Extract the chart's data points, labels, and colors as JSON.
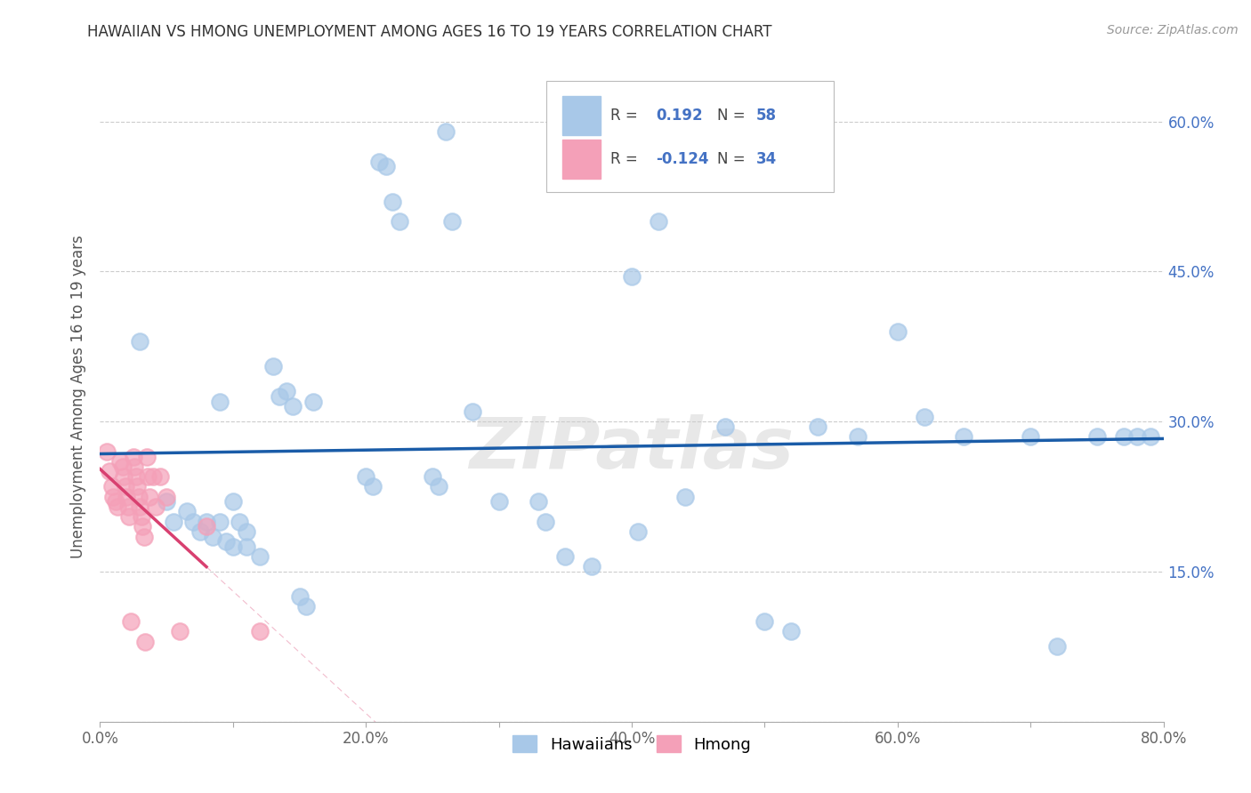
{
  "title": "HAWAIIAN VS HMONG UNEMPLOYMENT AMONG AGES 16 TO 19 YEARS CORRELATION CHART",
  "source": "Source: ZipAtlas.com",
  "ylabel": "Unemployment Among Ages 16 to 19 years",
  "xlim": [
    0.0,
    0.8
  ],
  "ylim": [
    0.0,
    0.65
  ],
  "xticks": [
    0.0,
    0.1,
    0.2,
    0.3,
    0.4,
    0.5,
    0.6,
    0.7,
    0.8
  ],
  "xticklabels": [
    "0.0%",
    "",
    "20.0%",
    "",
    "40.0%",
    "",
    "60.0%",
    "",
    "80.0%"
  ],
  "yticks": [
    0.0,
    0.15,
    0.3,
    0.45,
    0.6
  ],
  "yticklabels_right": [
    "",
    "15.0%",
    "30.0%",
    "45.0%",
    "60.0%"
  ],
  "hawaiian_R": "0.192",
  "hawaiian_N": "58",
  "hmong_R": "-0.124",
  "hmong_N": "34",
  "hawaiian_color": "#a8c8e8",
  "hmong_color": "#f4a0b8",
  "hawaiian_line_color": "#1a5ca8",
  "hmong_line_color": "#d84070",
  "watermark": "ZIPatlas",
  "hawaiian_x": [
    0.03,
    0.05,
    0.055,
    0.065,
    0.07,
    0.075,
    0.08,
    0.085,
    0.09,
    0.09,
    0.095,
    0.1,
    0.1,
    0.105,
    0.11,
    0.11,
    0.12,
    0.13,
    0.135,
    0.14,
    0.145,
    0.15,
    0.155,
    0.16,
    0.2,
    0.205,
    0.21,
    0.215,
    0.22,
    0.225,
    0.25,
    0.255,
    0.26,
    0.265,
    0.28,
    0.3,
    0.33,
    0.335,
    0.35,
    0.37,
    0.4,
    0.405,
    0.42,
    0.44,
    0.47,
    0.5,
    0.52,
    0.54,
    0.57,
    0.6,
    0.62,
    0.65,
    0.7,
    0.72,
    0.75,
    0.77,
    0.78,
    0.79
  ],
  "hawaiian_y": [
    0.38,
    0.22,
    0.2,
    0.21,
    0.2,
    0.19,
    0.2,
    0.185,
    0.32,
    0.2,
    0.18,
    0.175,
    0.22,
    0.2,
    0.19,
    0.175,
    0.165,
    0.355,
    0.325,
    0.33,
    0.315,
    0.125,
    0.115,
    0.32,
    0.245,
    0.235,
    0.56,
    0.555,
    0.52,
    0.5,
    0.245,
    0.235,
    0.59,
    0.5,
    0.31,
    0.22,
    0.22,
    0.2,
    0.165,
    0.155,
    0.445,
    0.19,
    0.5,
    0.225,
    0.295,
    0.1,
    0.09,
    0.295,
    0.285,
    0.39,
    0.305,
    0.285,
    0.285,
    0.075,
    0.285,
    0.285,
    0.285,
    0.285
  ],
  "hmong_x": [
    0.005,
    0.007,
    0.009,
    0.01,
    0.012,
    0.013,
    0.015,
    0.017,
    0.018,
    0.019,
    0.02,
    0.021,
    0.022,
    0.023,
    0.025,
    0.026,
    0.027,
    0.028,
    0.029,
    0.03,
    0.031,
    0.032,
    0.033,
    0.034,
    0.035,
    0.036,
    0.037,
    0.04,
    0.042,
    0.045,
    0.05,
    0.06,
    0.08,
    0.12
  ],
  "hmong_y": [
    0.27,
    0.25,
    0.235,
    0.225,
    0.22,
    0.215,
    0.26,
    0.255,
    0.245,
    0.235,
    0.225,
    0.215,
    0.205,
    0.1,
    0.265,
    0.255,
    0.245,
    0.235,
    0.225,
    0.215,
    0.205,
    0.195,
    0.185,
    0.08,
    0.265,
    0.245,
    0.225,
    0.245,
    0.215,
    0.245,
    0.225,
    0.09,
    0.195,
    0.09
  ]
}
